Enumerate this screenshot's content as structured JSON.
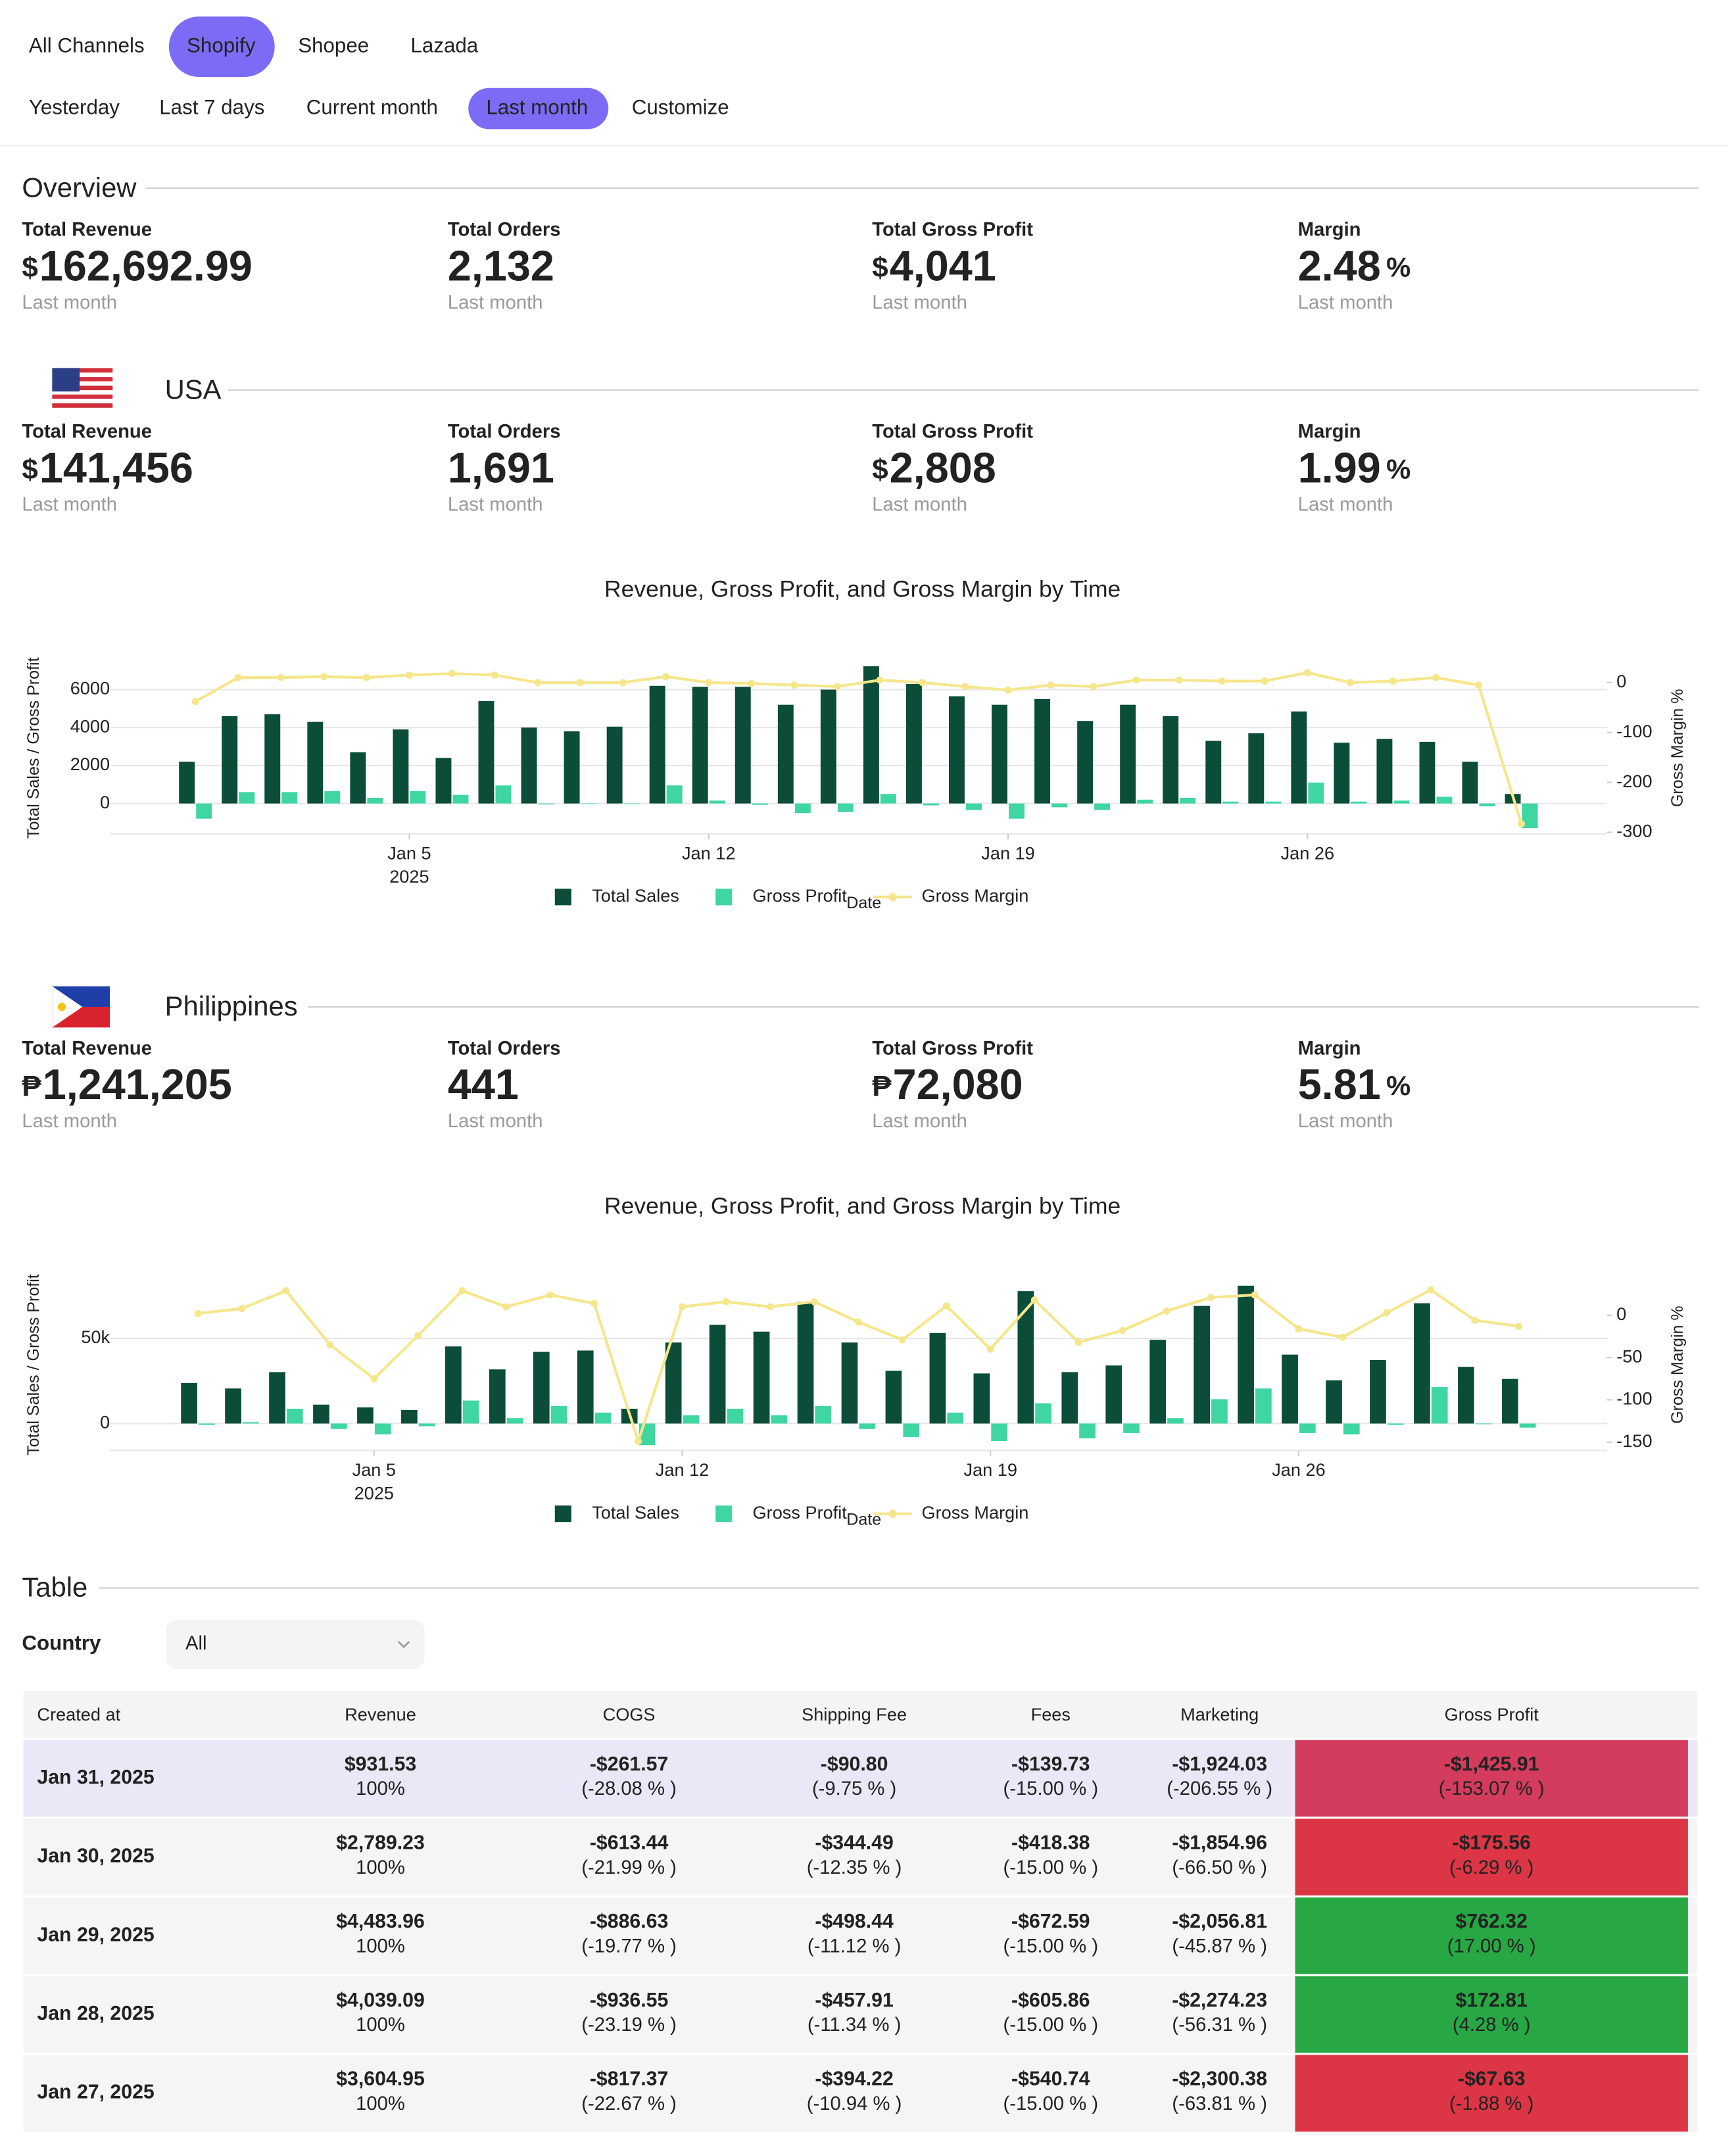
{
  "nav": {
    "channels": [
      "All Channels",
      "Shopify",
      "Shopee",
      "Lazada"
    ],
    "active_channel": 1,
    "periods": [
      "Yesterday",
      "Last 7 days",
      "Current month",
      "Last month",
      "Customize"
    ],
    "active_period": 3
  },
  "overview": {
    "title": "Overview",
    "stats": [
      {
        "label": "Total Revenue",
        "currency": "$",
        "value": "162,692.99",
        "period": "Last month"
      },
      {
        "label": "Total Orders",
        "value": "2,132",
        "period": "Last month"
      },
      {
        "label": "Total Gross Profit",
        "currency": "$",
        "value": "4,041",
        "period": "Last month"
      },
      {
        "label": "Margin",
        "value": "2.48",
        "unit": "%",
        "period": "Last month"
      }
    ]
  },
  "regions": [
    {
      "name": "USA",
      "flag": "us",
      "stats": [
        {
          "label": "Total Revenue",
          "currency": "$",
          "value": "141,456",
          "period": "Last month"
        },
        {
          "label": "Total Orders",
          "value": "1,691",
          "period": "Last month"
        },
        {
          "label": "Total Gross Profit",
          "currency": "$",
          "value": "2,808",
          "period": "Last month"
        },
        {
          "label": "Margin",
          "value": "1.99",
          "unit": "%",
          "period": "Last month"
        }
      ]
    },
    {
      "name": "Philippines",
      "flag": "ph",
      "stats": [
        {
          "label": "Total Revenue",
          "currency": "₱",
          "value": "1,241,205",
          "period": "Last month"
        },
        {
          "label": "Total Orders",
          "value": "441",
          "period": "Last month"
        },
        {
          "label": "Total Gross Profit",
          "currency": "₱",
          "value": "72,080",
          "period": "Last month"
        },
        {
          "label": "Margin",
          "value": "5.81",
          "unit": "%",
          "period": "Last month"
        }
      ]
    }
  ],
  "chart_data": [
    {
      "type": "bar",
      "title": "Revenue, Gross Profit, and Gross Margin by Time",
      "x_label": "Date",
      "y_label": "Total Sales / Gross Profit",
      "y2_label": "Gross Margin %",
      "x": [
        "2024-12-31",
        "2025-01-01",
        "2025-01-02",
        "2025-01-03",
        "2025-01-04",
        "2025-01-05",
        "2025-01-06",
        "2025-01-07",
        "2025-01-08",
        "2025-01-09",
        "2025-01-10",
        "2025-01-11",
        "2025-01-12",
        "2025-01-13",
        "2025-01-14",
        "2025-01-15",
        "2025-01-16",
        "2025-01-17",
        "2025-01-18",
        "2025-01-19",
        "2025-01-20",
        "2025-01-21",
        "2025-01-22",
        "2025-01-23",
        "2025-01-24",
        "2025-01-25",
        "2025-01-26",
        "2025-01-27",
        "2025-01-28",
        "2025-01-29",
        "2025-01-30",
        "2025-01-31"
      ],
      "xlim": [
        "2024-12-29",
        "2025-02-02"
      ],
      "xticks": [
        {
          "value": "2025-01-05",
          "label": "Jan 5",
          "year": "2025"
        },
        {
          "value": "2025-01-12",
          "label": "Jan 12"
        },
        {
          "value": "2025-01-19",
          "label": "Jan 19"
        },
        {
          "value": "2025-01-26",
          "label": "Jan 26"
        }
      ],
      "ylim": [
        -1600,
        7450
      ],
      "yticks": [
        0,
        2000,
        4000,
        6000
      ],
      "y2lim": [
        -303,
        41
      ],
      "y2ticks": [
        -300,
        -200,
        -100,
        0
      ],
      "grid": true,
      "series": [
        {
          "name": "Total Sales",
          "type": "bar",
          "color": "#0b4d38",
          "values": [
            2200,
            4600,
            4700,
            4300,
            2700,
            3900,
            2400,
            5400,
            4000,
            3800,
            4050,
            6200,
            6150,
            6150,
            5200,
            6000,
            7230,
            6300,
            5650,
            5200,
            5500,
            4350,
            5200,
            4600,
            3300,
            3700,
            4850,
            3200,
            3400,
            3250,
            2200,
            500
          ]
        },
        {
          "name": "Gross Profit",
          "type": "bar",
          "color": "#3fd6a1",
          "values": [
            -800,
            600,
            600,
            650,
            300,
            650,
            450,
            950,
            -50,
            0,
            0,
            950,
            150,
            -70,
            -500,
            -450,
            500,
            -100,
            -350,
            -800,
            -200,
            -350,
            200,
            300,
            100,
            100,
            1100,
            100,
            150,
            350,
            -150,
            -1300
          ]
        },
        {
          "name": "Gross Margin",
          "type": "line",
          "axis": "y2",
          "color": "#f5e68c",
          "values": [
            -38,
            10,
            10,
            12,
            10,
            15,
            18,
            15,
            0,
            0,
            0,
            12,
            0,
            -2,
            -5,
            -8,
            5,
            0,
            -8,
            -15,
            -5,
            -8,
            5,
            5,
            3,
            3,
            20,
            0,
            3,
            10,
            -5,
            -283
          ]
        }
      ]
    },
    {
      "type": "bar",
      "title": "Revenue, Gross Profit, and Gross Margin by Time",
      "x_label": "Date",
      "y_label": "Total Sales / Gross Profit",
      "y2_label": "Gross Margin %",
      "x": [
        "2025-01-01",
        "2025-01-02",
        "2025-01-03",
        "2025-01-04",
        "2025-01-05",
        "2025-01-06",
        "2025-01-07",
        "2025-01-08",
        "2025-01-09",
        "2025-01-10",
        "2025-01-11",
        "2025-01-12",
        "2025-01-13",
        "2025-01-14",
        "2025-01-15",
        "2025-01-16",
        "2025-01-17",
        "2025-01-18",
        "2025-01-19",
        "2025-01-20",
        "2025-01-21",
        "2025-01-22",
        "2025-01-23",
        "2025-01-24",
        "2025-01-25",
        "2025-01-26",
        "2025-01-27",
        "2025-01-28",
        "2025-01-29",
        "2025-01-30",
        "2025-01-31"
      ],
      "xlim": [
        "2024-12-30",
        "2025-02-02"
      ],
      "xticks": [
        {
          "value": "2025-01-05",
          "label": "Jan 5",
          "year": "2025"
        },
        {
          "value": "2025-01-12",
          "label": "Jan 12"
        },
        {
          "value": "2025-01-19",
          "label": "Jan 19"
        },
        {
          "value": "2025-01-26",
          "label": "Jan 26"
        }
      ],
      "ylim": [
        -15900,
        85000
      ],
      "yticks": [
        0,
        {
          "value": 50000,
          "label": "50k"
        }
      ],
      "y2lim": [
        -160,
        43
      ],
      "y2ticks": [
        -150,
        -100,
        -50,
        0
      ],
      "grid": true,
      "series": [
        {
          "name": "Total Sales",
          "type": "bar",
          "color": "#0b4d38",
          "values": [
            23800,
            20600,
            30200,
            11100,
            9500,
            7900,
            45300,
            31800,
            42100,
            42900,
            8700,
            47600,
            58000,
            54000,
            71500,
            47600,
            31000,
            53200,
            29400,
            77800,
            30200,
            34100,
            49200,
            69100,
            81000,
            40500,
            25400,
            37300,
            70700,
            33300,
            26200
          ]
        },
        {
          "name": "Gross Profit",
          "type": "bar",
          "color": "#3fd6a1",
          "values": [
            -800,
            800,
            8700,
            -3200,
            -6400,
            -1600,
            13500,
            3200,
            10300,
            6400,
            -12700,
            4800,
            8700,
            4800,
            10300,
            -3200,
            -7900,
            6400,
            -10300,
            11900,
            -8700,
            -5600,
            3200,
            14300,
            20600,
            -5600,
            -6400,
            -800,
            21400,
            -400,
            -2400
          ]
        },
        {
          "name": "Gross Margin",
          "type": "line",
          "axis": "y2",
          "color": "#f5e68c",
          "values": [
            2,
            8,
            29,
            -35,
            -75,
            -24,
            29,
            10,
            24,
            14,
            -149,
            10,
            16,
            10,
            16,
            -8,
            -29,
            11,
            -40,
            18,
            -32,
            -18,
            5,
            21,
            24,
            -16,
            -26,
            3,
            30,
            -6,
            -13
          ]
        }
      ]
    }
  ],
  "table": {
    "title": "Table",
    "filter_label": "Country",
    "filter_value": "All",
    "columns": [
      "Created at",
      "Revenue",
      "COGS",
      "Shipping Fee",
      "Fees",
      "Marketing",
      "Gross Profit"
    ],
    "rows": [
      {
        "cells": [
          {
            "main": "Jan 31, 2025"
          },
          {
            "main": "$931.53",
            "sub": "100%"
          },
          {
            "main": "-$261.57",
            "sub": "(-28.08 % )"
          },
          {
            "main": "-$90.80",
            "sub": "(-9.75 % )"
          },
          {
            "main": "-$139.73",
            "sub": "(-15.00 % )"
          },
          {
            "main": "-$1,924.03",
            "sub": "(-206.55 % )"
          },
          {
            "main": "-$1,425.91",
            "sub": "(-153.07 % )"
          }
        ],
        "profit_color": "#d33c5c"
      },
      {
        "cells": [
          {
            "main": "Jan 30, 2025"
          },
          {
            "main": "$2,789.23",
            "sub": "100%"
          },
          {
            "main": "-$613.44",
            "sub": "(-21.99 % )"
          },
          {
            "main": "-$344.49",
            "sub": "(-12.35 % )"
          },
          {
            "main": "-$418.38",
            "sub": "(-15.00 % )"
          },
          {
            "main": "-$1,854.96",
            "sub": "(-66.50 % )"
          },
          {
            "main": "-$175.56",
            "sub": "(-6.29 % )"
          }
        ],
        "profit_color": "#dc3545"
      },
      {
        "cells": [
          {
            "main": "Jan 29, 2025"
          },
          {
            "main": "$4,483.96",
            "sub": "100%"
          },
          {
            "main": "-$886.63",
            "sub": "(-19.77 % )"
          },
          {
            "main": "-$498.44",
            "sub": "(-11.12 % )"
          },
          {
            "main": "-$672.59",
            "sub": "(-15.00 % )"
          },
          {
            "main": "-$2,056.81",
            "sub": "(-45.87 % )"
          },
          {
            "main": "$762.32",
            "sub": "(17.00 % )"
          }
        ],
        "profit_color": "#28a745"
      },
      {
        "cells": [
          {
            "main": "Jan 28, 2025"
          },
          {
            "main": "$4,039.09",
            "sub": "100%"
          },
          {
            "main": "-$936.55",
            "sub": "(-23.19 % )"
          },
          {
            "main": "-$457.91",
            "sub": "(-11.34 % )"
          },
          {
            "main": "-$605.86",
            "sub": "(-15.00 % )"
          },
          {
            "main": "-$2,274.23",
            "sub": "(-56.31 % )"
          },
          {
            "main": "$172.81",
            "sub": "(4.28 % )"
          }
        ],
        "profit_color": "#28a745"
      },
      {
        "cells": [
          {
            "main": "Jan 27, 2025"
          },
          {
            "main": "$3,604.95",
            "sub": "100%"
          },
          {
            "main": "-$817.37",
            "sub": "(-22.67 % )"
          },
          {
            "main": "-$394.22",
            "sub": "(-10.94 % )"
          },
          {
            "main": "-$540.74",
            "sub": "(-15.00 % )"
          },
          {
            "main": "-$2,300.38",
            "sub": "(-63.81 % )"
          },
          {
            "main": "-$67.63",
            "sub": "(-1.88 % )"
          }
        ],
        "profit_color": "#dc3545"
      }
    ]
  }
}
